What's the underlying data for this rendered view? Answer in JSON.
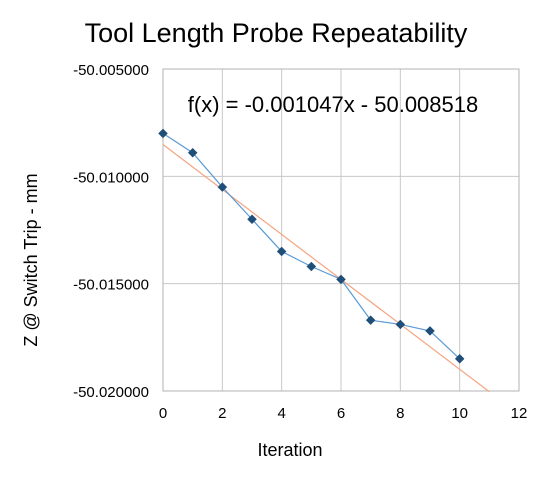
{
  "chart_data": {
    "type": "scatter",
    "title": "Tool Length Probe Repeatability",
    "xlabel": "Iteration",
    "ylabel": "Z @ Switch Trip - mm",
    "xlim": [
      0,
      12
    ],
    "ylim": [
      -50.02,
      -50.005
    ],
    "x_ticks": [
      "0",
      "2",
      "4",
      "6",
      "8",
      "10",
      "12"
    ],
    "y_ticks": [
      "-50.005000",
      "-50.010000",
      "-50.015000",
      "-50.020000"
    ],
    "grid": true,
    "legend": "none",
    "annotation": "f(x) = -0.001047x - 50.008518",
    "series": [
      {
        "x": [
          0,
          1,
          2,
          3,
          4,
          5,
          6,
          7,
          8,
          9,
          10
        ],
        "y": [
          -50.008,
          -50.0089,
          -50.0105,
          -50.012,
          -50.0135,
          -50.0142,
          -50.0148,
          -50.0167,
          -50.0169,
          -50.0172,
          -50.0185
        ],
        "color": "#1f4e79",
        "line_color": "#5b9bd5",
        "marker": "diamond"
      }
    ],
    "trendline": {
      "slope": -0.001047,
      "intercept": -50.008518,
      "x_range": [
        0,
        11
      ],
      "color": "#f4a582"
    },
    "colors": {
      "grid": "#c8c8c8",
      "axis": "#b3b3b3",
      "text": "#000000"
    }
  }
}
